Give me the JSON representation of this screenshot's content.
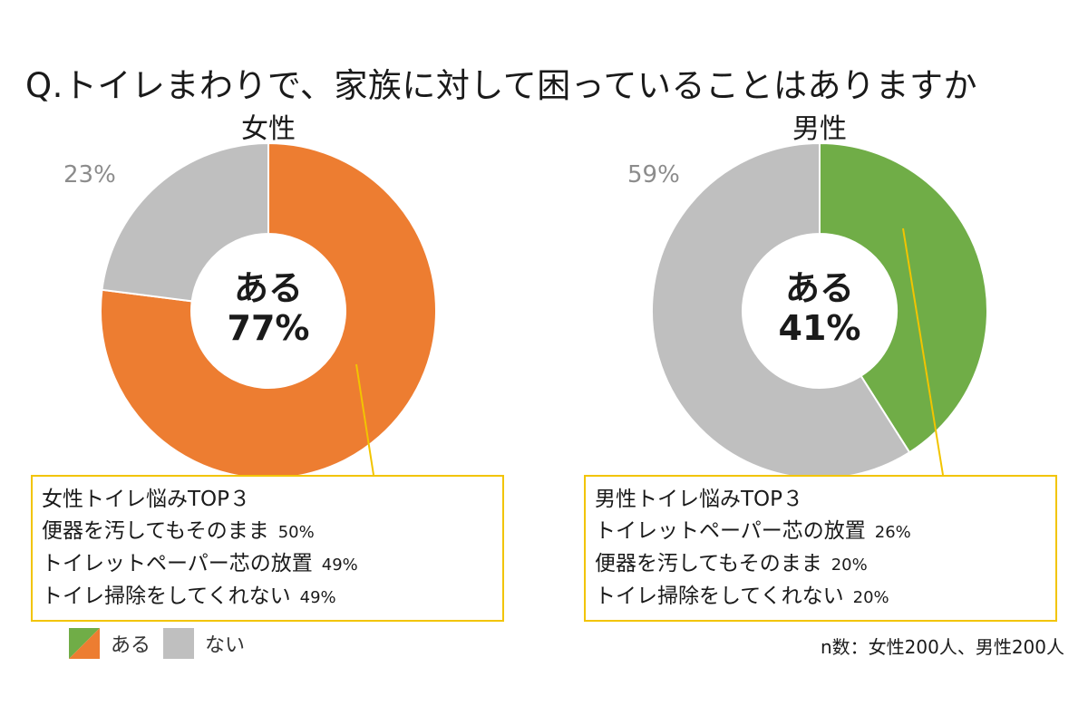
{
  "title": "Q.トイレまわりで、家族に対して困っていることはありますか",
  "colors": {
    "aru_female": "#ed7d31",
    "aru_male": "#70ad47",
    "nai": "#bfbfbf",
    "callout": "#f2c400"
  },
  "chart_data": [
    {
      "type": "pie",
      "title": "女性",
      "labels": [
        "ある",
        "ない"
      ],
      "values": [
        77,
        23
      ],
      "center_label": [
        "ある",
        "77%"
      ],
      "nai_label": "23%",
      "top3": {
        "heading": "女性トイレ悩みTOP３",
        "items": [
          {
            "label": "便器を汚してもそのまま",
            "value": "50%"
          },
          {
            "label": "トイレットペーパー芯の放置",
            "value": "49%"
          },
          {
            "label": "トイレ掃除をしてくれない",
            "value": "49%"
          }
        ]
      }
    },
    {
      "type": "pie",
      "title": "男性",
      "labels": [
        "ある",
        "ない"
      ],
      "values": [
        41,
        59
      ],
      "center_label": [
        "ある",
        "41%"
      ],
      "nai_label": "59%",
      "top3": {
        "heading": "男性トイレ悩みTOP３",
        "items": [
          {
            "label": "トイレットペーパー芯の放置",
            "value": "26%"
          },
          {
            "label": "便器を汚してもそのまま",
            "value": "20%"
          },
          {
            "label": "トイレ掃除をしてくれない",
            "value": "20%"
          }
        ]
      }
    }
  ],
  "legend": {
    "aru": "ある",
    "nai": "ない"
  },
  "footnote": "n数：女性200人、男性200人"
}
